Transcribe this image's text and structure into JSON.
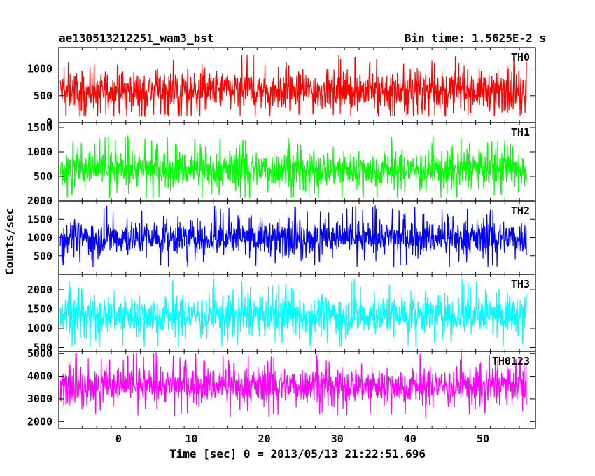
{
  "chart_data": {
    "type": "line",
    "title_left": "ae130513212251_wam3_bst",
    "title_right": "Bin time: 1.5625E-2 s",
    "xlabel": "Time [sec] 0 = 2013/05/13 21:22:51.696",
    "ylabel": "Counts/sec",
    "xlim": [
      -8.2,
      57.2
    ],
    "x_ticks": [
      0,
      10,
      20,
      30,
      40,
      50
    ],
    "data_range": [
      -8.0,
      56.0
    ],
    "panels": [
      {
        "name": "TH0",
        "color": "#ff0000",
        "ylim": [
          0,
          1400
        ],
        "y_ticks": [
          0,
          500,
          1000
        ],
        "mean": 600,
        "spread": 320,
        "bottom": 120
      },
      {
        "name": "TH1",
        "color": "#00ff00",
        "ylim": [
          0,
          1600
        ],
        "y_ticks": [
          500,
          1000,
          1500
        ],
        "mean": 650,
        "spread": 330,
        "bottom": 60
      },
      {
        "name": "TH2",
        "color": "#0000ff",
        "ylim": [
          0,
          2000
        ],
        "y_ticks": [
          500,
          1000,
          1500,
          2000
        ],
        "mean": 1000,
        "spread": 420,
        "bottom": 200
      },
      {
        "name": "TH3",
        "color": "#00ffff",
        "ylim": [
          400,
          2400
        ],
        "y_ticks": [
          500,
          1000,
          1500,
          2000
        ],
        "mean": 1350,
        "spread": 450,
        "bottom": 520
      },
      {
        "name": "TH0123",
        "color": "#ff00ff",
        "ylim": [
          1700,
          5100
        ],
        "y_ticks": [
          2000,
          3000,
          4000,
          5000
        ],
        "mean": 3600,
        "spread": 700,
        "bottom": 1850
      }
    ]
  }
}
